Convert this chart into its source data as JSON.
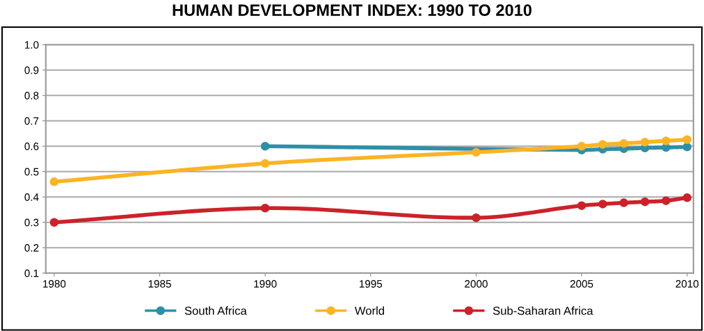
{
  "chart_data": {
    "type": "line",
    "title": "HUMAN DEVELOPMENT INDEX: 1990 TO 2010",
    "series": [
      {
        "name": "South Africa",
        "color": "#2e8fa8",
        "x": [
          1990,
          2005,
          2006,
          2007,
          2008,
          2009,
          2010
        ],
        "values": [
          0.6,
          0.585,
          0.588,
          0.59,
          0.593,
          0.595,
          0.597
        ]
      },
      {
        "name": "World",
        "color": "#fbb423",
        "x": [
          1980,
          1990,
          2000,
          2005,
          2006,
          2007,
          2008,
          2009,
          2010
        ],
        "values": [
          0.46,
          0.532,
          0.576,
          0.6,
          0.607,
          0.611,
          0.616,
          0.621,
          0.626
        ]
      },
      {
        "name": "Sub-Saharan Africa",
        "color": "#cc2229",
        "x": [
          1980,
          1990,
          2000,
          2005,
          2006,
          2007,
          2008,
          2009,
          2010
        ],
        "values": [
          0.3,
          0.356,
          0.318,
          0.366,
          0.372,
          0.377,
          0.381,
          0.385,
          0.397
        ]
      }
    ],
    "xlim": [
      1979.6,
      2010.3
    ],
    "xticks": [
      1980,
      1985,
      1990,
      1995,
      2000,
      2005,
      2010
    ],
    "ylim": [
      0.1,
      1.0
    ],
    "yticks": [
      0.1,
      0.2,
      0.3,
      0.4,
      0.5,
      0.6,
      0.7,
      0.8,
      0.9,
      {
        "value": 1.0,
        "label": "1.0"
      }
    ],
    "grid": "y",
    "legend": "bottom",
    "marker": "circle",
    "line_style": "solid"
  }
}
